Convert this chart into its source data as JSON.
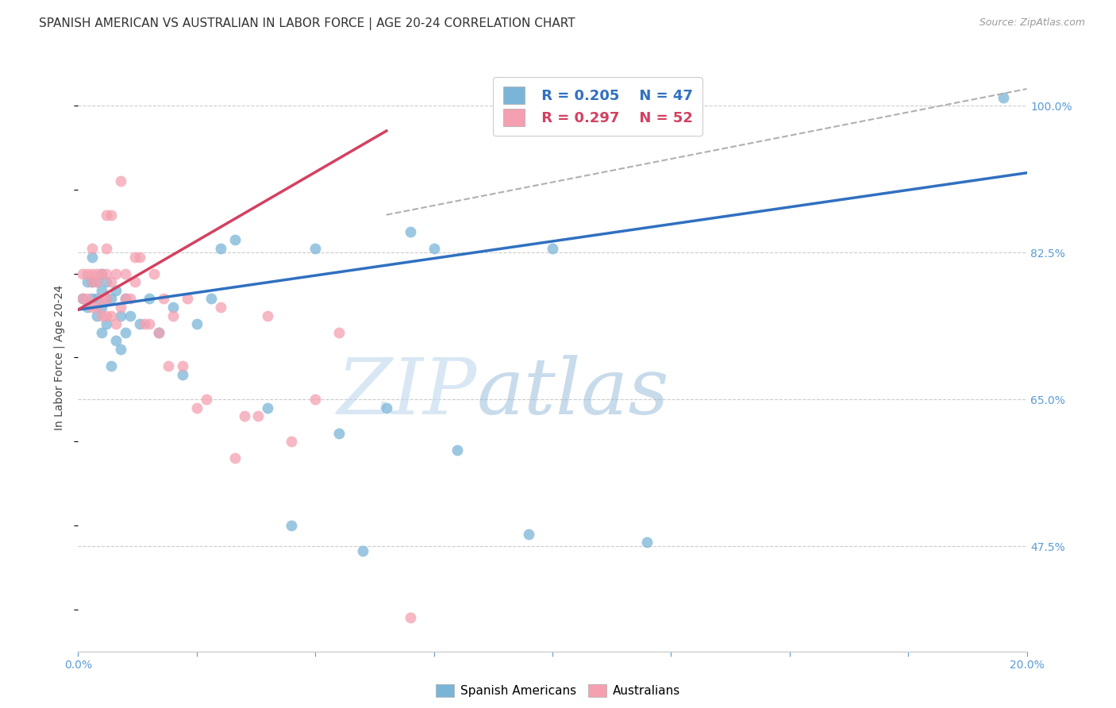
{
  "title": "SPANISH AMERICAN VS AUSTRALIAN IN LABOR FORCE | AGE 20-24 CORRELATION CHART",
  "source": "Source: ZipAtlas.com",
  "ylabel": "In Labor Force | Age 20-24",
  "xlim": [
    0.0,
    0.2
  ],
  "ylim": [
    0.35,
    1.05
  ],
  "yticks": [
    0.475,
    0.65,
    0.825,
    1.0
  ],
  "ytick_labels": [
    "47.5%",
    "65.0%",
    "82.5%",
    "100.0%"
  ],
  "xticks": [
    0.0,
    0.025,
    0.05,
    0.075,
    0.1,
    0.125,
    0.15,
    0.175,
    0.2
  ],
  "xtick_labels": [
    "0.0%",
    "",
    "",
    "",
    "",
    "",
    "",
    "",
    "20.0%"
  ],
  "blue_scatter_color": "#7ab5d8",
  "pink_scatter_color": "#f4a0b0",
  "blue_line_color": "#3070c0",
  "pink_line_color": "#d44060",
  "dash_line_color": "#b0b0b0",
  "axis_color": "#5b9bd5",
  "grid_color": "#cccccc",
  "legend_r_blue": "R = 0.205",
  "legend_n_blue": "N = 47",
  "legend_r_pink": "R = 0.297",
  "legend_n_pink": "N = 52",
  "blue_scatter_x": [
    0.001,
    0.002,
    0.002,
    0.003,
    0.003,
    0.003,
    0.004,
    0.004,
    0.004,
    0.005,
    0.005,
    0.005,
    0.005,
    0.006,
    0.006,
    0.006,
    0.007,
    0.007,
    0.008,
    0.008,
    0.009,
    0.009,
    0.01,
    0.01,
    0.011,
    0.013,
    0.015,
    0.017,
    0.02,
    0.022,
    0.025,
    0.028,
    0.03,
    0.033,
    0.04,
    0.045,
    0.05,
    0.055,
    0.06,
    0.065,
    0.07,
    0.075,
    0.08,
    0.095,
    0.1,
    0.12,
    0.195
  ],
  "blue_scatter_y": [
    0.77,
    0.76,
    0.79,
    0.77,
    0.79,
    0.82,
    0.75,
    0.77,
    0.79,
    0.73,
    0.76,
    0.78,
    0.8,
    0.74,
    0.77,
    0.79,
    0.69,
    0.77,
    0.72,
    0.78,
    0.71,
    0.75,
    0.73,
    0.77,
    0.75,
    0.74,
    0.77,
    0.73,
    0.76,
    0.68,
    0.74,
    0.77,
    0.83,
    0.84,
    0.64,
    0.5,
    0.83,
    0.61,
    0.47,
    0.64,
    0.85,
    0.83,
    0.59,
    0.49,
    0.83,
    0.48,
    1.01
  ],
  "pink_scatter_x": [
    0.001,
    0.001,
    0.002,
    0.002,
    0.003,
    0.003,
    0.003,
    0.003,
    0.004,
    0.004,
    0.004,
    0.005,
    0.005,
    0.005,
    0.006,
    0.006,
    0.006,
    0.006,
    0.006,
    0.007,
    0.007,
    0.007,
    0.008,
    0.008,
    0.009,
    0.009,
    0.01,
    0.01,
    0.011,
    0.012,
    0.012,
    0.013,
    0.014,
    0.015,
    0.016,
    0.017,
    0.018,
    0.019,
    0.02,
    0.022,
    0.023,
    0.025,
    0.027,
    0.03,
    0.033,
    0.035,
    0.038,
    0.04,
    0.045,
    0.05,
    0.055,
    0.07
  ],
  "pink_scatter_y": [
    0.77,
    0.8,
    0.77,
    0.8,
    0.76,
    0.79,
    0.8,
    0.83,
    0.76,
    0.79,
    0.8,
    0.75,
    0.77,
    0.8,
    0.75,
    0.77,
    0.8,
    0.83,
    0.87,
    0.75,
    0.79,
    0.87,
    0.74,
    0.8,
    0.76,
    0.91,
    0.77,
    0.8,
    0.77,
    0.79,
    0.82,
    0.82,
    0.74,
    0.74,
    0.8,
    0.73,
    0.77,
    0.69,
    0.75,
    0.69,
    0.77,
    0.64,
    0.65,
    0.76,
    0.58,
    0.63,
    0.63,
    0.75,
    0.6,
    0.65,
    0.73,
    0.39
  ],
  "blue_line_x": [
    0.0,
    0.2
  ],
  "blue_line_y": [
    0.757,
    0.92
  ],
  "pink_line_x": [
    0.0,
    0.065
  ],
  "pink_line_y": [
    0.757,
    0.97
  ],
  "dash_line_x": [
    0.065,
    0.2
  ],
  "dash_line_y": [
    0.87,
    1.02
  ],
  "background_color": "#ffffff",
  "title_fontsize": 11,
  "axis_label_fontsize": 10,
  "tick_fontsize": 10,
  "legend_fontsize": 13
}
